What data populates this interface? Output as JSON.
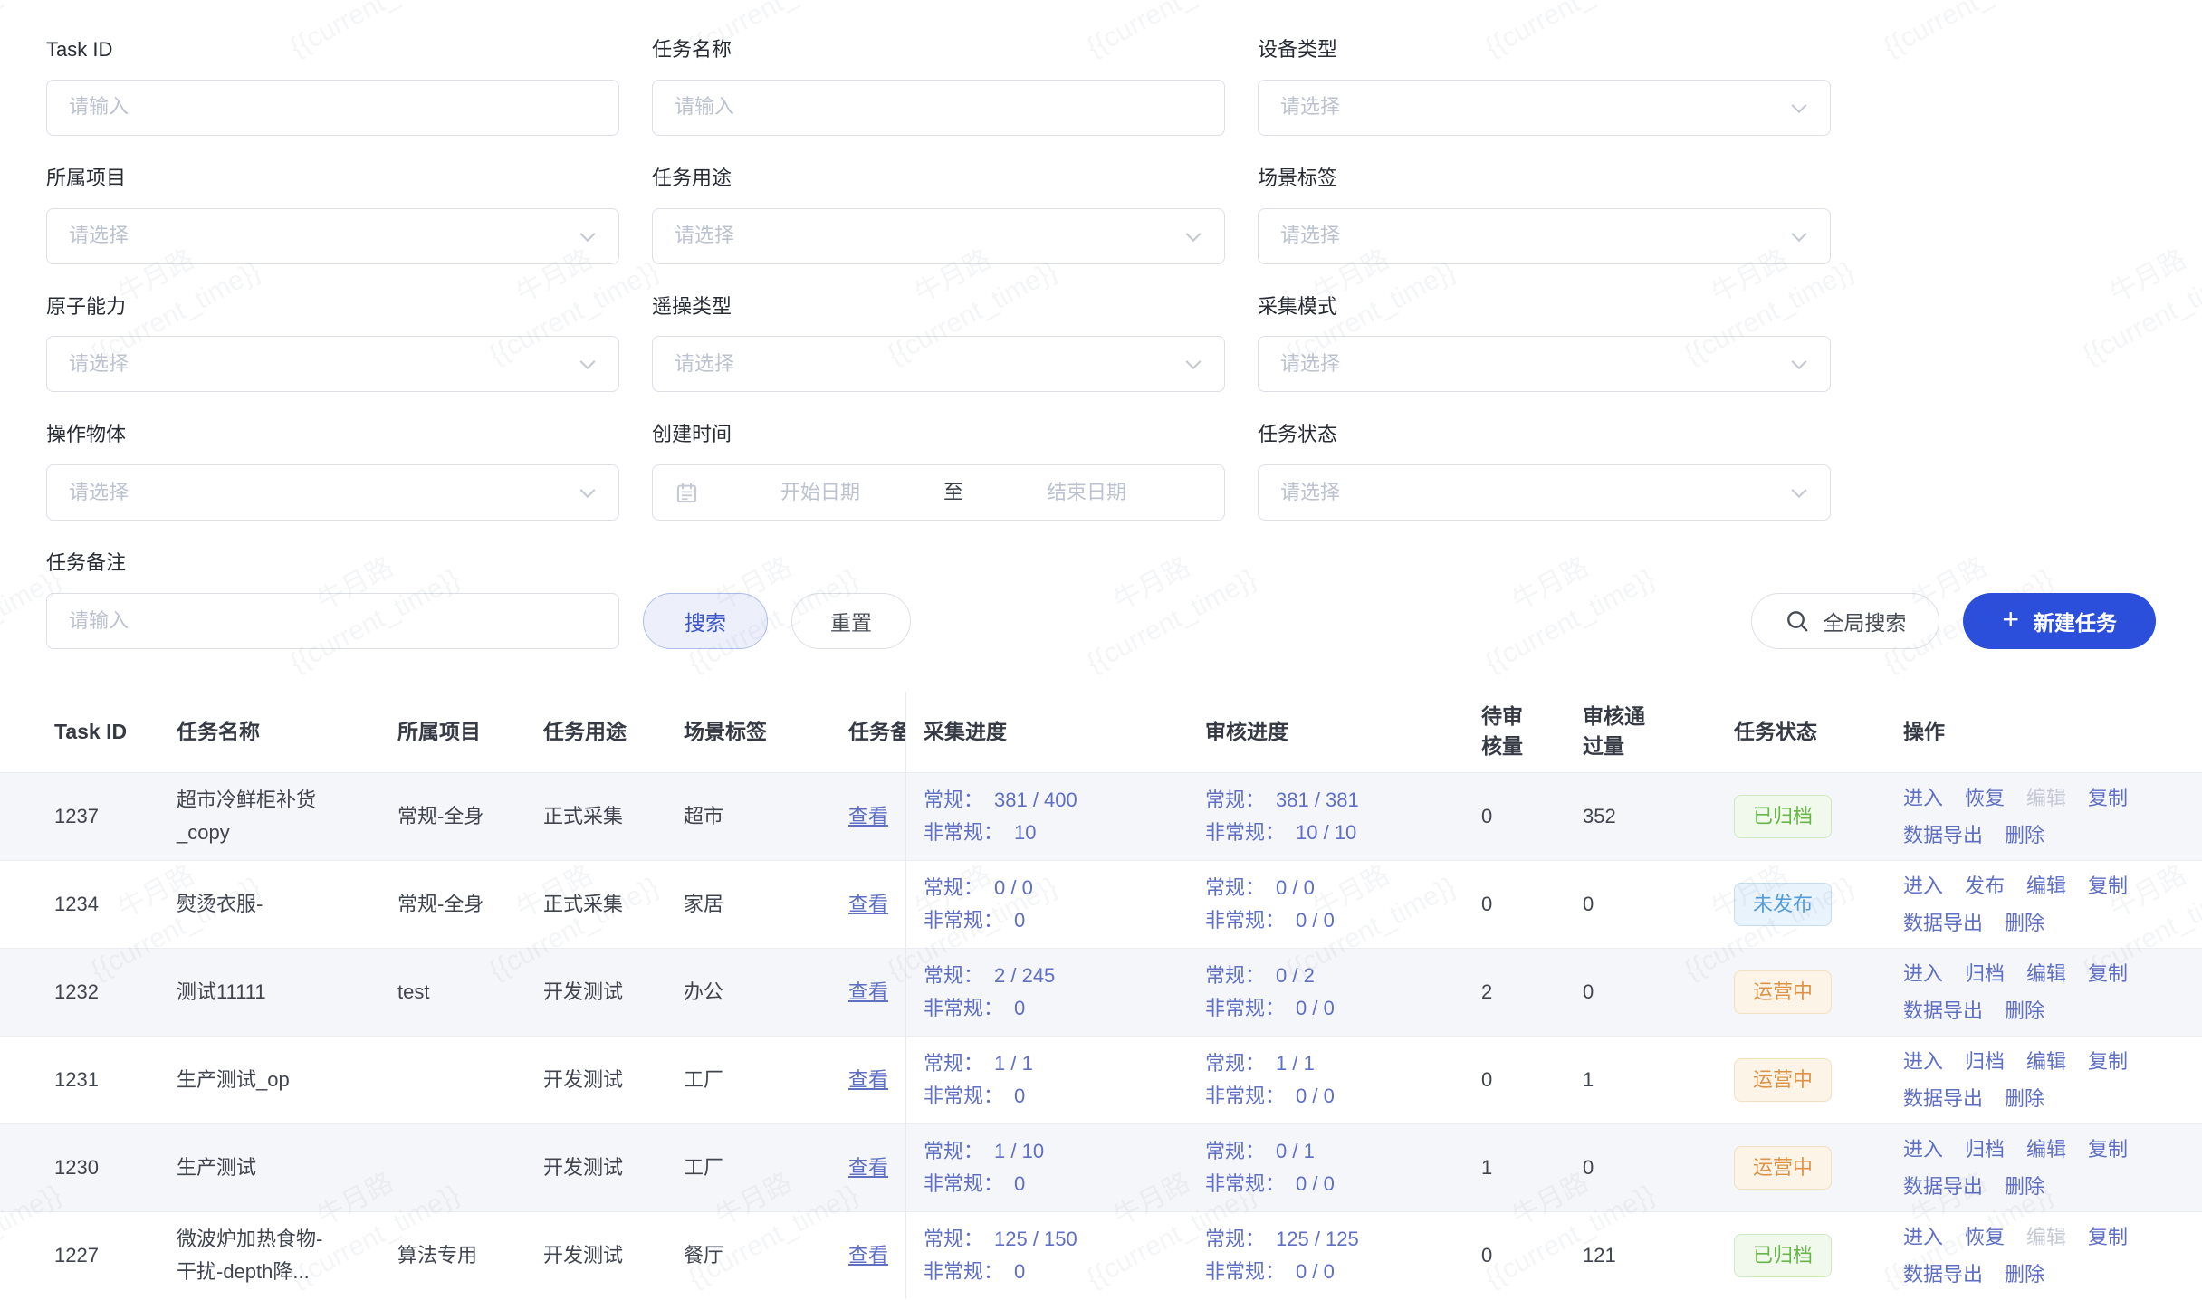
{
  "watermark": {
    "line1": "牛月路",
    "line2": "{{current_time}}"
  },
  "filters": {
    "fields": [
      {
        "label": "Task ID",
        "type": "input",
        "placeholder": "请输入"
      },
      {
        "label": "任务名称",
        "type": "input",
        "placeholder": "请输入"
      },
      {
        "label": "设备类型",
        "type": "select",
        "placeholder": "请选择"
      },
      {
        "label": "所属项目",
        "type": "select",
        "placeholder": "请选择"
      },
      {
        "label": "任务用途",
        "type": "select",
        "placeholder": "请选择"
      },
      {
        "label": "场景标签",
        "type": "select",
        "placeholder": "请选择"
      },
      {
        "label": "原子能力",
        "type": "select",
        "placeholder": "请选择"
      },
      {
        "label": "遥操类型",
        "type": "select",
        "placeholder": "请选择"
      },
      {
        "label": "采集模式",
        "type": "select",
        "placeholder": "请选择"
      },
      {
        "label": "操作物体",
        "type": "select",
        "placeholder": "请选择"
      },
      {
        "label": "创建时间",
        "type": "daterange",
        "start_placeholder": "开始日期",
        "separator": "至",
        "end_placeholder": "结束日期"
      },
      {
        "label": "任务状态",
        "type": "select",
        "placeholder": "请选择"
      }
    ],
    "remark_field": {
      "label": "任务备注",
      "type": "input",
      "placeholder": "请输入"
    },
    "search_label": "搜索",
    "reset_label": "重置"
  },
  "toolbar": {
    "global_search_label": "全局搜索",
    "new_task_label": "新建任务",
    "plus": "+"
  },
  "table": {
    "columns": [
      "Task ID",
      "任务名称",
      "所属项目",
      "任务用途",
      "场景标签",
      "任务备注",
      "采集进度",
      "审核进度",
      "待审核量",
      "审核通过量",
      "任务状态",
      "操作"
    ],
    "remark_link": "查看",
    "progress_labels": {
      "regular": "常规：",
      "irregular": "非常规："
    },
    "rows": [
      {
        "task_id": "1237",
        "name": "超市冷鲜柜补货_copy",
        "project": "常规-全身",
        "purpose": "正式采集",
        "scene": "超市",
        "collect": {
          "regular": "381 / 400",
          "irregular": "10"
        },
        "review": {
          "regular": "381 / 381",
          "irregular": "10 / 10"
        },
        "pending": "0",
        "approved": "352",
        "status": {
          "text": "已归档",
          "kind": "green"
        },
        "actions": [
          {
            "text": "进入"
          },
          {
            "text": "恢复"
          },
          {
            "text": "编辑",
            "disabled": true
          },
          {
            "text": "复制"
          },
          {
            "text": "数据导出"
          },
          {
            "text": "删除"
          }
        ]
      },
      {
        "task_id": "1234",
        "name": "熨烫衣服-",
        "project": "常规-全身",
        "purpose": "正式采集",
        "scene": "家居",
        "collect": {
          "regular": "0 / 0",
          "irregular": "0"
        },
        "review": {
          "regular": "0 / 0",
          "irregular": "0 / 0"
        },
        "pending": "0",
        "approved": "0",
        "status": {
          "text": "未发布",
          "kind": "blue"
        },
        "actions": [
          {
            "text": "进入"
          },
          {
            "text": "发布"
          },
          {
            "text": "编辑"
          },
          {
            "text": "复制"
          },
          {
            "text": "数据导出"
          },
          {
            "text": "删除"
          }
        ]
      },
      {
        "task_id": "1232",
        "name": "测试11111",
        "project": "test",
        "purpose": "开发测试",
        "scene": "办公",
        "collect": {
          "regular": "2 / 245",
          "irregular": "0"
        },
        "review": {
          "regular": "0 / 2",
          "irregular": "0 / 0"
        },
        "pending": "2",
        "approved": "0",
        "status": {
          "text": "运营中",
          "kind": "orange"
        },
        "actions": [
          {
            "text": "进入"
          },
          {
            "text": "归档"
          },
          {
            "text": "编辑"
          },
          {
            "text": "复制"
          },
          {
            "text": "数据导出"
          },
          {
            "text": "删除"
          }
        ]
      },
      {
        "task_id": "1231",
        "name": "生产测试_op",
        "project": "",
        "purpose": "开发测试",
        "scene": "工厂",
        "collect": {
          "regular": "1 / 1",
          "irregular": "0"
        },
        "review": {
          "regular": "1 / 1",
          "irregular": "0 / 0"
        },
        "pending": "0",
        "approved": "1",
        "status": {
          "text": "运营中",
          "kind": "orange"
        },
        "actions": [
          {
            "text": "进入"
          },
          {
            "text": "归档"
          },
          {
            "text": "编辑"
          },
          {
            "text": "复制"
          },
          {
            "text": "数据导出"
          },
          {
            "text": "删除"
          }
        ]
      },
      {
        "task_id": "1230",
        "name": "生产测试",
        "project": "",
        "purpose": "开发测试",
        "scene": "工厂",
        "collect": {
          "regular": "1 / 10",
          "irregular": "0"
        },
        "review": {
          "regular": "0 / 1",
          "irregular": "0 / 0"
        },
        "pending": "1",
        "approved": "0",
        "status": {
          "text": "运营中",
          "kind": "orange"
        },
        "actions": [
          {
            "text": "进入"
          },
          {
            "text": "归档"
          },
          {
            "text": "编辑"
          },
          {
            "text": "复制"
          },
          {
            "text": "数据导出"
          },
          {
            "text": "删除"
          }
        ]
      },
      {
        "task_id": "1227",
        "name": "微波炉加热食物-干扰-depth降...",
        "project": "算法专用",
        "purpose": "开发测试",
        "scene": "餐厅",
        "collect": {
          "regular": "125 / 150",
          "irregular": "0"
        },
        "review": {
          "regular": "125 / 125",
          "irregular": "0 / 0"
        },
        "pending": "0",
        "approved": "121",
        "status": {
          "text": "已归档",
          "kind": "green"
        },
        "actions": [
          {
            "text": "进入"
          },
          {
            "text": "恢复"
          },
          {
            "text": "编辑",
            "disabled": true
          },
          {
            "text": "复制"
          },
          {
            "text": "数据导出"
          },
          {
            "text": "删除"
          }
        ]
      }
    ]
  }
}
